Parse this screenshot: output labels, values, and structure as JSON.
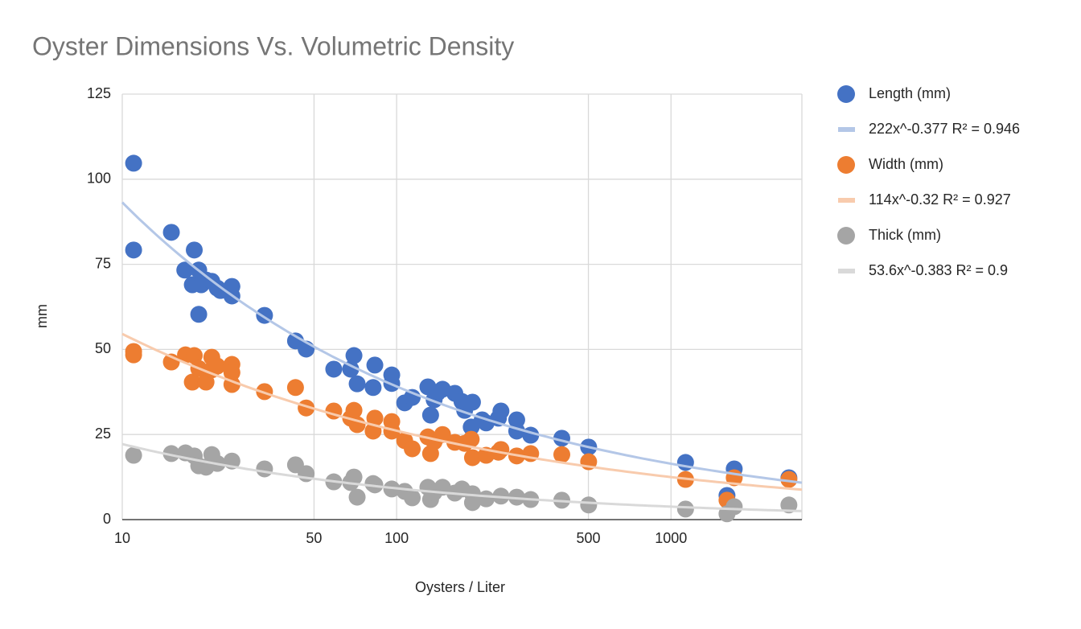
{
  "chart_data": {
    "type": "scatter",
    "title": "Oyster Dimensions Vs. Volumetric Density",
    "x_label": "Oysters / Liter",
    "y_label": "mm",
    "xscale": "log",
    "xlim": [
      10,
      3000
    ],
    "xticks": [
      10,
      50,
      100,
      500,
      1000
    ],
    "ylim": [
      0,
      125
    ],
    "yticks": [
      0,
      25,
      50,
      75,
      100,
      125
    ],
    "grid": true,
    "legend": "right",
    "series": [
      {
        "name": "Length (mm)",
        "color": "#4472c4",
        "x": [
          11,
          11,
          15.1,
          16.9,
          18.3,
          18,
          19,
          19,
          19.4,
          20.2,
          21.2,
          22.2,
          25.1,
          25.1,
          22.8,
          33,
          42.8,
          46.8,
          59,
          68,
          69.9,
          71.8,
          83.3,
          82.1,
          96,
          96,
          107,
          114,
          130,
          133,
          137,
          141,
          147,
          163,
          173,
          177,
          189,
          187,
          205,
          212,
          235,
          240,
          274,
          274,
          308,
          400,
          501,
          1130,
          1600,
          1700,
          2690
        ],
        "values": [
          104.7,
          79.2,
          84.4,
          73.3,
          79.2,
          69,
          73.3,
          60.3,
          69,
          70.4,
          70,
          68,
          68.5,
          65.7,
          67.3,
          60,
          52.5,
          50.1,
          44.2,
          44.2,
          48.2,
          39.9,
          45.4,
          38.8,
          42.5,
          40,
          34.3,
          35.9,
          39,
          30.7,
          35.2,
          37.3,
          38.3,
          37.1,
          34.7,
          32.1,
          34.5,
          27.2,
          29.3,
          28.4,
          29.8,
          31.9,
          29.3,
          26,
          24.8,
          23.9,
          21.3,
          16.8,
          7.1,
          14.9,
          12.3
        ],
        "trendline": {
          "label": "222x^-0.377 R² = 0.946",
          "color": "#b4c7e7",
          "a": 222,
          "b": -0.377
        }
      },
      {
        "name": "Width (mm)",
        "color": "#ed7d31",
        "x": [
          11,
          11,
          15.1,
          17,
          18.3,
          18,
          20.2,
          19,
          21.2,
          21.2,
          22.2,
          25.1,
          25.1,
          25.1,
          33,
          42.8,
          46.8,
          59,
          68,
          69.9,
          71.8,
          82.1,
          83.3,
          96,
          96,
          107,
          114,
          130,
          133,
          137,
          147,
          163,
          177,
          187,
          189,
          212,
          235,
          240,
          274,
          308,
          400,
          501,
          1130,
          1600,
          1700,
          2690
        ],
        "values": [
          49.4,
          48.4,
          46.3,
          48.4,
          48.2,
          40.4,
          40.4,
          44.4,
          47.7,
          44,
          45.1,
          45.6,
          43.2,
          39.7,
          37.6,
          38.8,
          32.8,
          31.9,
          29.8,
          32.1,
          27.9,
          26,
          29.8,
          28.8,
          26,
          23.2,
          20.8,
          24.3,
          19.4,
          22.9,
          25,
          22.7,
          22.4,
          23.6,
          18.2,
          18.9,
          19.8,
          20.6,
          18.7,
          19.4,
          19.1,
          17,
          11.8,
          5.7,
          12.3,
          11.8
        ],
        "trendline": {
          "label": "114x^-0.32 R² = 0.927",
          "color": "#f8cbad",
          "a": 114,
          "b": -0.32
        }
      },
      {
        "name": "Thick (mm)",
        "color": "#a5a5a5",
        "x": [
          11,
          15.1,
          17,
          18.3,
          19,
          20.2,
          21.2,
          22.2,
          25.1,
          33,
          42.8,
          46.8,
          59,
          68,
          69.9,
          71.8,
          82.1,
          83.3,
          96,
          107,
          114,
          130,
          133,
          137,
          147,
          163,
          173,
          189,
          189,
          212,
          240,
          274,
          308,
          400,
          501,
          1130,
          1600,
          1700,
          2690
        ],
        "values": [
          18.9,
          19.4,
          19.6,
          18.7,
          15.8,
          15.4,
          19.1,
          16.5,
          17.2,
          14.9,
          16.1,
          13.5,
          11.1,
          10.9,
          12.5,
          6.6,
          10.6,
          10.2,
          9,
          8.3,
          6.4,
          9.5,
          5.9,
          8,
          9.5,
          7.8,
          9,
          7.6,
          5,
          6.1,
          6.9,
          6.6,
          5.9,
          5.7,
          4.3,
          3.1,
          1.7,
          3.8,
          4.3
        ],
        "trendline": {
          "label": "53.6x^-0.383 R² = 0.9",
          "color": "#d9d9d9",
          "a": 53.6,
          "b": -0.383
        }
      }
    ]
  }
}
